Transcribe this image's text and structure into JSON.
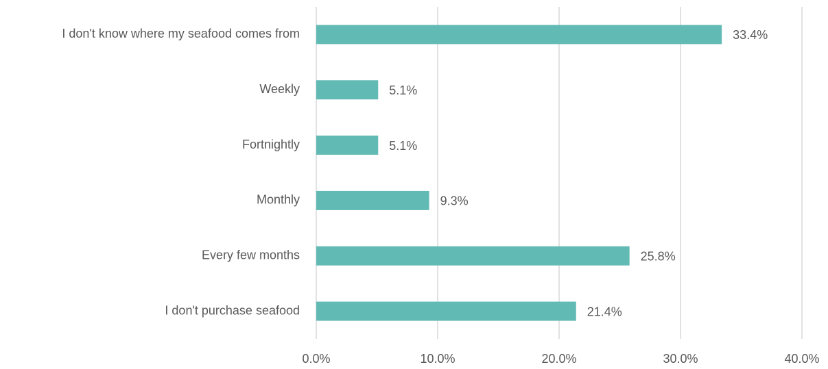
{
  "chart_data": {
    "type": "bar",
    "orientation": "horizontal",
    "categories": [
      "I don't know where my seafood comes from",
      "Weekly",
      "Fortnightly",
      "Monthly",
      "Every few months",
      "I don't purchase seafood"
    ],
    "values": [
      33.4,
      5.1,
      5.1,
      9.3,
      25.8,
      21.4
    ],
    "value_labels": [
      "33.4%",
      "5.1%",
      "5.1%",
      "9.3%",
      "25.8%",
      "21.4%"
    ],
    "color": "#62bab5",
    "xlim": [
      0,
      40
    ],
    "xticks": [
      {
        "value": 0,
        "label": "0.0%"
      },
      {
        "value": 10,
        "label": "10.0%"
      },
      {
        "value": 20,
        "label": "20.0%"
      },
      {
        "value": 30,
        "label": "30.0%"
      },
      {
        "value": 40,
        "label": "40.0%"
      }
    ],
    "grid": true
  }
}
